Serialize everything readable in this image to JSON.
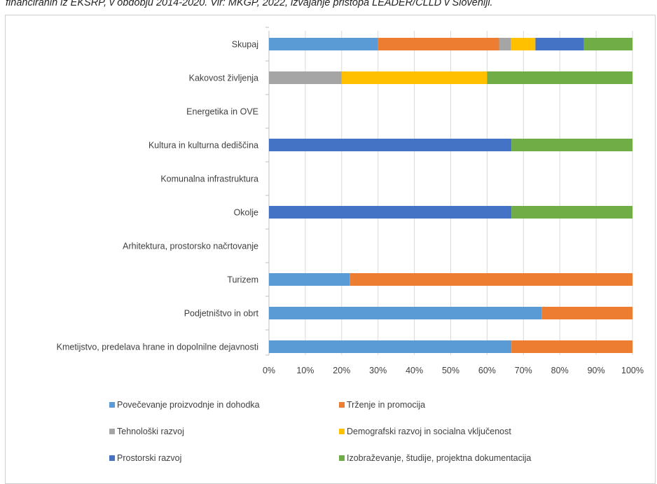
{
  "caption": "financiranih iz EKSRP, v obdobju 2014-2020. Vir: MKGP, 2022, izvajanje pristopa LEADER/CLLD v Sloveniji.",
  "chart_data": {
    "type": "bar",
    "orientation": "horizontal",
    "stacked": "percent",
    "title": "",
    "xlabel": "",
    "ylabel": "",
    "xlim": [
      0,
      100
    ],
    "x_ticks": [
      "0%",
      "10%",
      "20%",
      "30%",
      "40%",
      "50%",
      "60%",
      "70%",
      "80%",
      "90%",
      "100%"
    ],
    "grid": "vertical",
    "legend_position": "bottom",
    "categories": [
      "Skupaj",
      "Kakovost življenja",
      "Energetika in OVE",
      "Kultura in kulturna dediščina",
      "Komunalna infrastruktura",
      "Okolje",
      "Arhitektura, prostorsko načrtovanje",
      "Turizem",
      "Podjetništvo in obrt",
      "Kmetijstvo, predelava hrane in dopolnilne dejavnosti"
    ],
    "series": [
      {
        "name": "Povečevanje proizvodnje in dohodka",
        "color": "#5B9BD5",
        "values": [
          30,
          0,
          0,
          0,
          0,
          0,
          0,
          22.2,
          75,
          66.7
        ]
      },
      {
        "name": "Trženje in promocija",
        "color": "#ED7D31",
        "values": [
          33.3,
          0,
          0,
          0,
          0,
          0,
          0,
          77.8,
          25,
          33.3
        ]
      },
      {
        "name": "Tehnološki razvoj",
        "color": "#A5A5A5",
        "values": [
          3.3,
          20,
          0,
          0,
          0,
          0,
          0,
          0,
          0,
          0
        ]
      },
      {
        "name": "Demografski razvoj in socialna vključenost",
        "color": "#FFC000",
        "values": [
          6.7,
          40,
          0,
          0,
          0,
          0,
          0,
          0,
          0,
          0
        ]
      },
      {
        "name": "Prostorski razvoj",
        "color": "#4472C4",
        "values": [
          13.3,
          0,
          0,
          66.7,
          0,
          66.7,
          0,
          0,
          0,
          0
        ]
      },
      {
        "name": "Izobraževanje, študije, projektna dokumentacija",
        "color": "#70AD47",
        "values": [
          13.4,
          40,
          0,
          33.3,
          0,
          33.3,
          0,
          0,
          0,
          0
        ]
      }
    ]
  }
}
